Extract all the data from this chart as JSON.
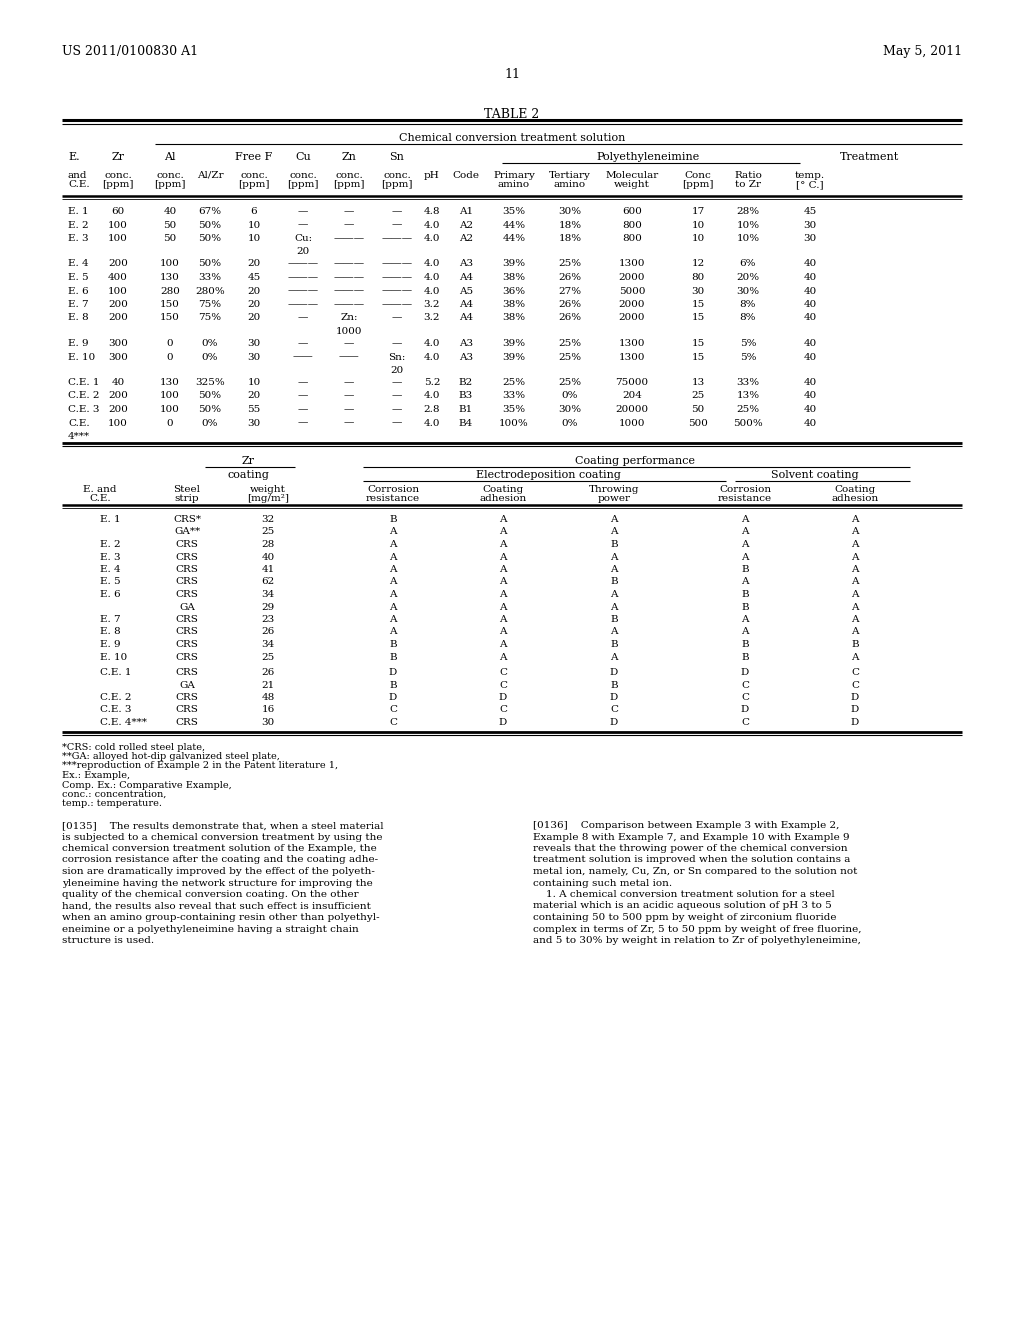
{
  "bg_color": "#ffffff",
  "title_left": "US 2011/0100830 A1",
  "title_right": "May 5, 2011",
  "page_number": "11",
  "table_title": "TABLE 2"
}
